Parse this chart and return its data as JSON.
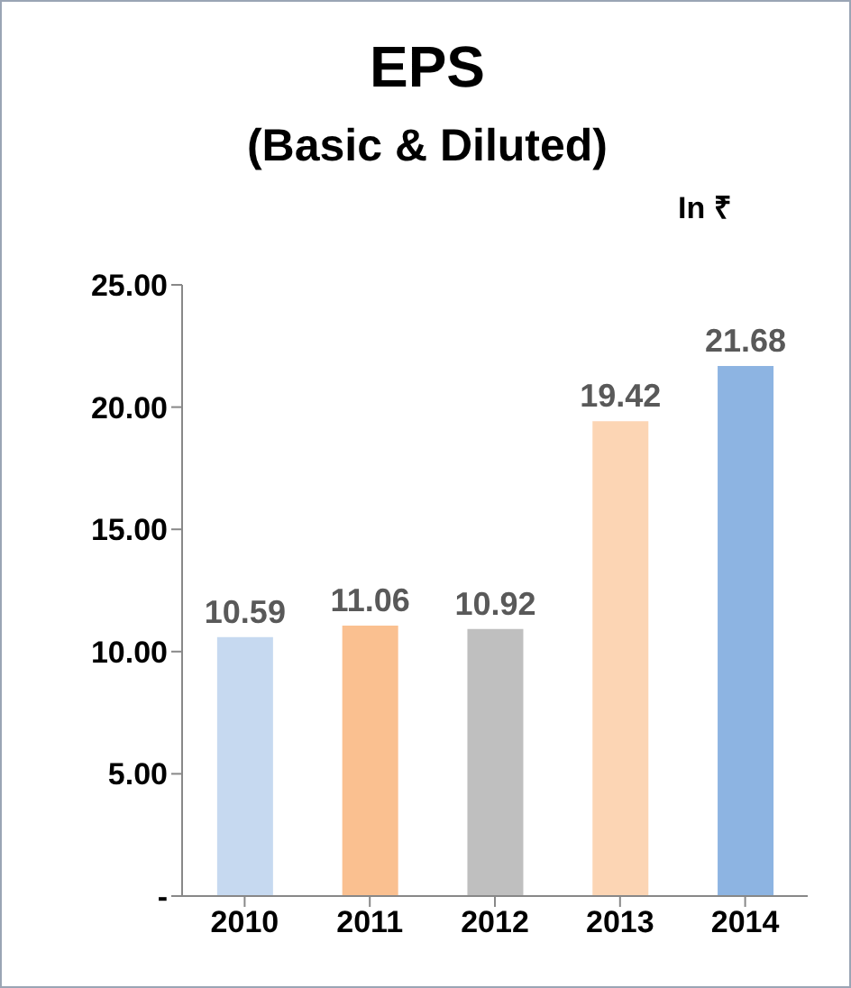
{
  "chart_data": {
    "type": "bar",
    "title": "EPS",
    "subtitle": "(Basic & Diluted)",
    "annotations": [
      "In ₹"
    ],
    "categories": [
      "2010",
      "2011",
      "2012",
      "2013",
      "2014"
    ],
    "values": [
      10.59,
      11.06,
      10.92,
      19.42,
      21.68
    ],
    "colors": [
      "#c6d9f0",
      "#fac090",
      "#bfbfbf",
      "#fcd5b4",
      "#8db4e2"
    ],
    "ylim": [
      0,
      25
    ],
    "yticks": [
      {
        "value": 0,
        "label": "-"
      },
      {
        "value": 5,
        "label": "5.00"
      },
      {
        "value": 10,
        "label": "10.00"
      },
      {
        "value": 15,
        "label": "15.00"
      },
      {
        "value": 20,
        "label": "20.00"
      },
      {
        "value": 25,
        "label": "25.00"
      }
    ],
    "data_labels": true
  }
}
